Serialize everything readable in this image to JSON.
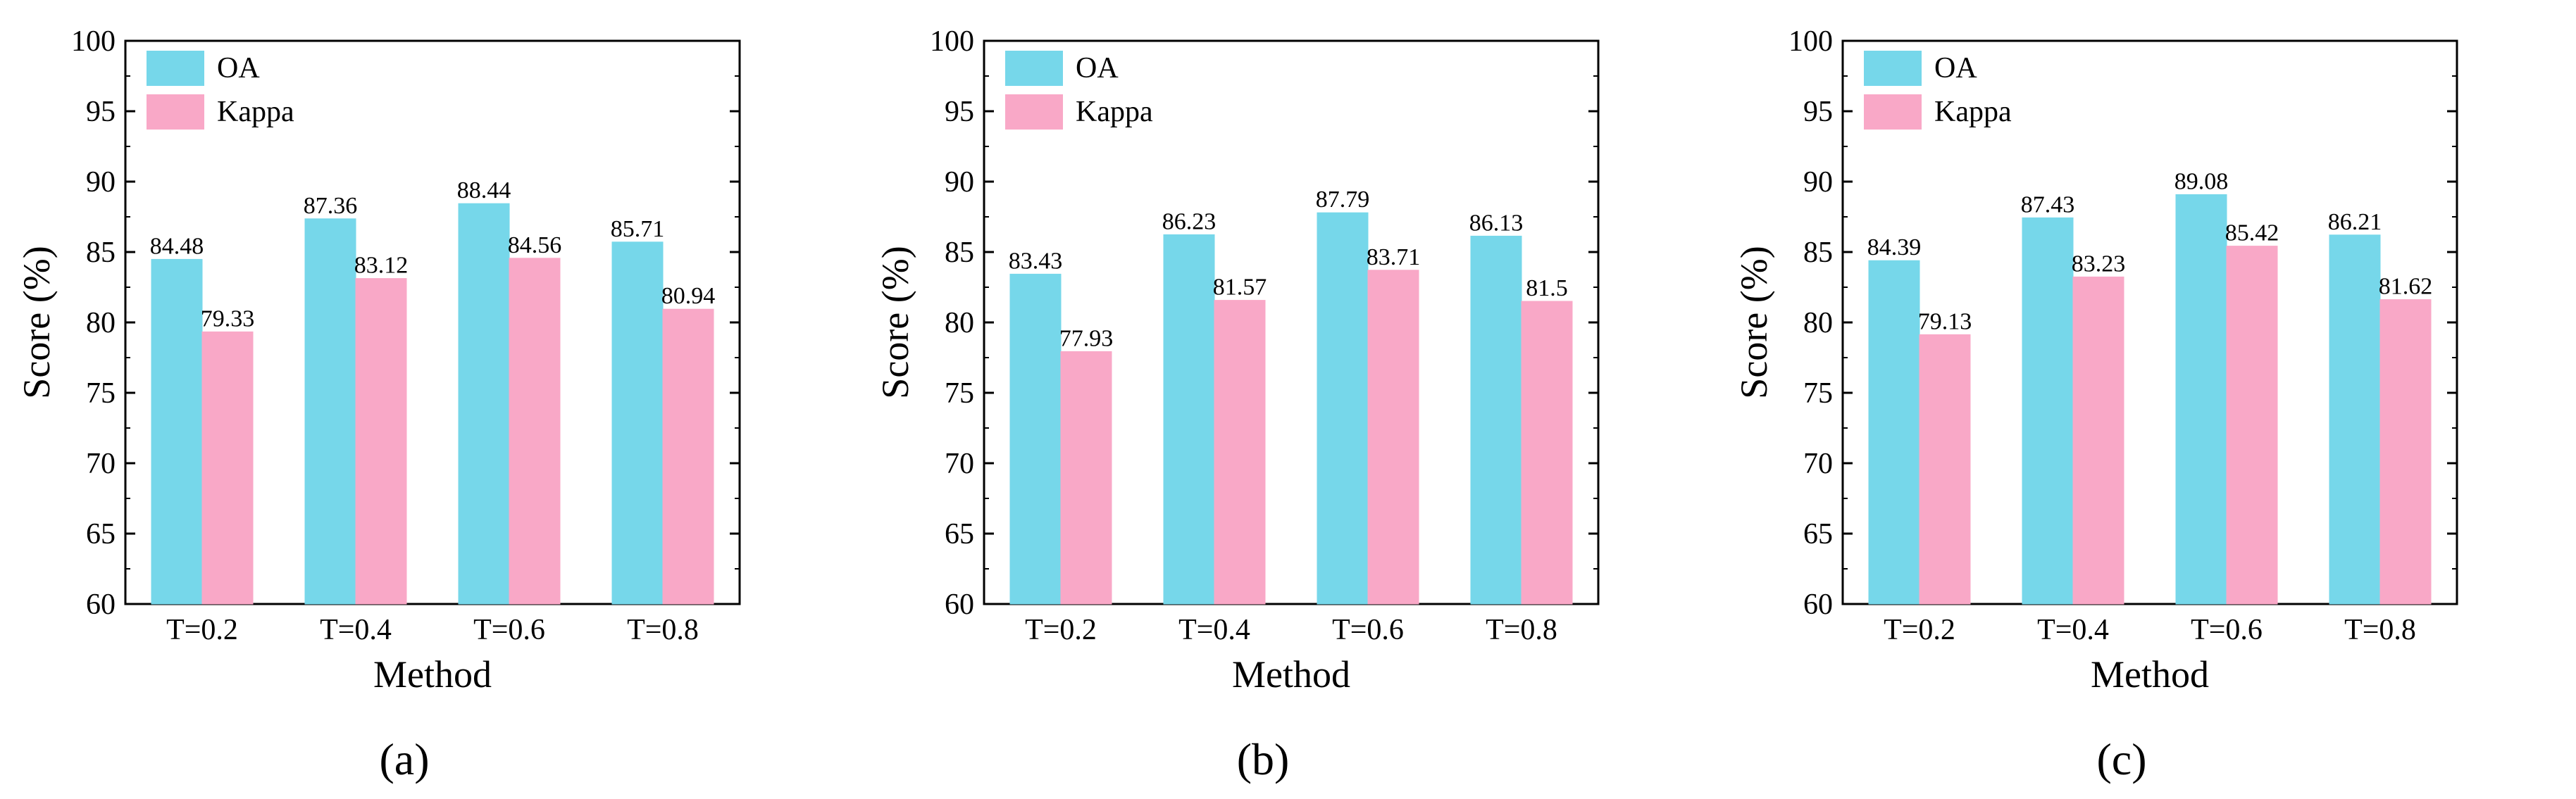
{
  "series_colors": {
    "OA": "#76D7EA",
    "Kappa": "#F9A8C7"
  },
  "chart_data": [
    {
      "panel": "(a)",
      "type": "bar",
      "xlabel": "Method",
      "ylabel": "Score (%)",
      "ylim": [
        60,
        100
      ],
      "yticks": [
        60,
        65,
        70,
        75,
        80,
        85,
        90,
        95,
        100
      ],
      "legend_position": "top-left",
      "categories": [
        "T=0.2",
        "T=0.4",
        "T=0.6",
        "T=0.8"
      ],
      "series": [
        {
          "name": "OA",
          "values": [
            84.48,
            87.36,
            88.44,
            85.71
          ]
        },
        {
          "name": "Kappa",
          "values": [
            79.33,
            83.12,
            84.56,
            80.94
          ]
        }
      ]
    },
    {
      "panel": "(b)",
      "type": "bar",
      "xlabel": "Method",
      "ylabel": "Score (%)",
      "ylim": [
        60,
        100
      ],
      "yticks": [
        60,
        65,
        70,
        75,
        80,
        85,
        90,
        95,
        100
      ],
      "legend_position": "top-left",
      "categories": [
        "T=0.2",
        "T=0.4",
        "T=0.6",
        "T=0.8"
      ],
      "series": [
        {
          "name": "OA",
          "values": [
            83.43,
            86.23,
            87.79,
            86.13
          ]
        },
        {
          "name": "Kappa",
          "values": [
            77.93,
            81.57,
            83.71,
            81.5
          ]
        }
      ]
    },
    {
      "panel": "(c)",
      "type": "bar",
      "xlabel": "Method",
      "ylabel": "Score (%)",
      "ylim": [
        60,
        100
      ],
      "yticks": [
        60,
        65,
        70,
        75,
        80,
        85,
        90,
        95,
        100
      ],
      "legend_position": "top-left",
      "categories": [
        "T=0.2",
        "T=0.4",
        "T=0.6",
        "T=0.8"
      ],
      "series": [
        {
          "name": "OA",
          "values": [
            84.39,
            87.43,
            89.08,
            86.21
          ]
        },
        {
          "name": "Kappa",
          "values": [
            79.13,
            83.23,
            85.42,
            81.62
          ]
        }
      ]
    }
  ]
}
